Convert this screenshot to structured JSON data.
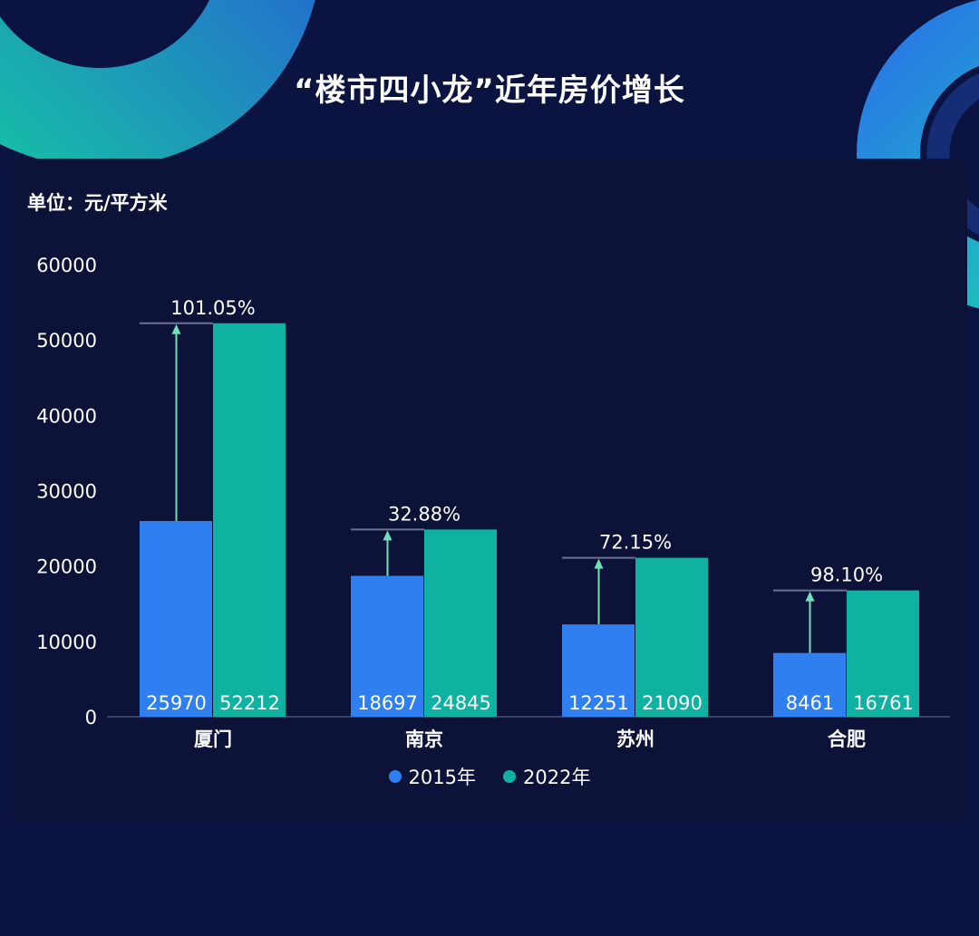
{
  "title": "“楼市四小龙”近年房价增长",
  "unit_label": "单位：元/平方米",
  "colors": {
    "background": "#0b1340",
    "panel": "#0d1238",
    "series_2015": "#2f7ff0",
    "series_2022": "#0fb1a1",
    "arrow": "#6fe0b8",
    "axis": "#3a4168",
    "text": "#ffffff"
  },
  "chart_data": {
    "type": "bar",
    "title": "“楼市四小龙”近年房价增长",
    "ylabel": "单位：元/平方米",
    "ylim": [
      0,
      60000
    ],
    "yticks": [
      0,
      10000,
      20000,
      30000,
      40000,
      50000,
      60000
    ],
    "categories": [
      "厦门",
      "南京",
      "苏州",
      "合肥"
    ],
    "series": [
      {
        "name": "2015年",
        "values": [
          25970,
          18697,
          12251,
          8461
        ]
      },
      {
        "name": "2022年",
        "values": [
          52212,
          24845,
          21090,
          16761
        ]
      }
    ],
    "growth_labels": [
      "101.05%",
      "32.88%",
      "72.15%",
      "98.10%"
    ],
    "legend_position": "bottom",
    "grid": false
  }
}
